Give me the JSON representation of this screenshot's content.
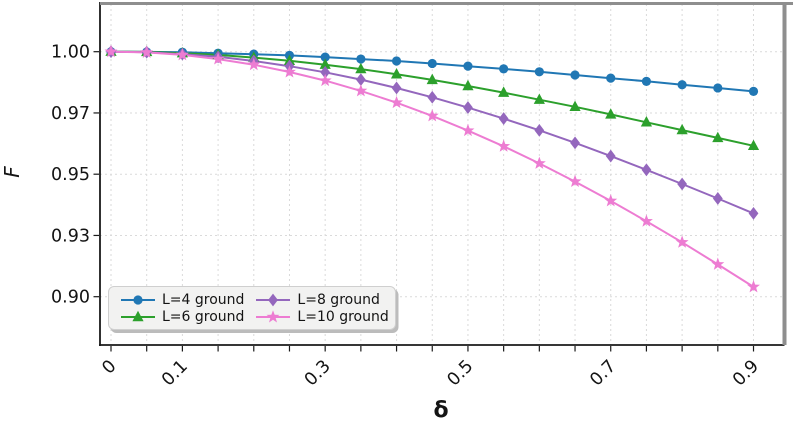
{
  "chart_data": {
    "type": "line",
    "title": "",
    "xlabel": "δ",
    "ylabel": "F",
    "grid": true,
    "legend_position": "lower left",
    "xlim": [
      -0.015,
      0.945
    ],
    "ylim": [
      0.88,
      1.02
    ],
    "x": [
      0,
      0.05,
      0.1,
      0.15,
      0.2,
      0.25,
      0.3,
      0.35,
      0.4,
      0.45,
      0.5,
      0.55,
      0.6,
      0.65,
      0.7,
      0.75,
      0.8,
      0.85,
      0.9
    ],
    "series": [
      {
        "label": "L=4 ground",
        "color": "#2077b4",
        "marker": "circle",
        "values": [
          1.0,
          0.9999,
          0.9998,
          0.9994,
          0.999,
          0.9985,
          0.9978,
          0.997,
          0.9962,
          0.9952,
          0.9941,
          0.993,
          0.9918,
          0.9905,
          0.9892,
          0.9879,
          0.9865,
          0.9852,
          0.9838
        ]
      },
      {
        "label": "L=6 ground",
        "color": "#2ca02c",
        "marker": "triangle-up",
        "values": [
          1.0,
          0.9999,
          0.9994,
          0.9987,
          0.9976,
          0.9963,
          0.9947,
          0.9929,
          0.9908,
          0.9885,
          0.986,
          0.9833,
          0.9804,
          0.9775,
          0.9744,
          0.9712,
          0.968,
          0.9648,
          0.9616
        ]
      },
      {
        "label": "L=8 ground",
        "color": "#9467bd",
        "marker": "diamond",
        "values": [
          1.0,
          0.9998,
          0.999,
          0.9979,
          0.9962,
          0.9941,
          0.9916,
          0.9886,
          0.9852,
          0.9814,
          0.9772,
          0.9727,
          0.9679,
          0.9628,
          0.9574,
          0.9518,
          0.946,
          0.9401,
          0.934
        ]
      },
      {
        "label": "L=10 ground",
        "color": "#ed7cd2",
        "marker": "star",
        "values": [
          1.0,
          0.9997,
          0.9987,
          0.997,
          0.9947,
          0.9917,
          0.9882,
          0.984,
          0.9792,
          0.9738,
          0.9678,
          0.9614,
          0.9544,
          0.947,
          0.9391,
          0.9308,
          0.9222,
          0.9132,
          0.904
        ]
      }
    ],
    "xticks": {
      "positions": [
        0,
        0.1,
        0.3,
        0.5,
        0.7,
        0.9
      ],
      "labels": [
        "0",
        "0.1",
        "0.3",
        "0.5",
        "0.7",
        "0.9"
      ]
    },
    "xticks_minor_step": 0.05,
    "yticks": {
      "positions": [
        1.0,
        0.975,
        0.95,
        0.925,
        0.9
      ],
      "labels": [
        "1.00",
        "0.97",
        "0.95",
        "0.93",
        "0.90"
      ]
    }
  }
}
